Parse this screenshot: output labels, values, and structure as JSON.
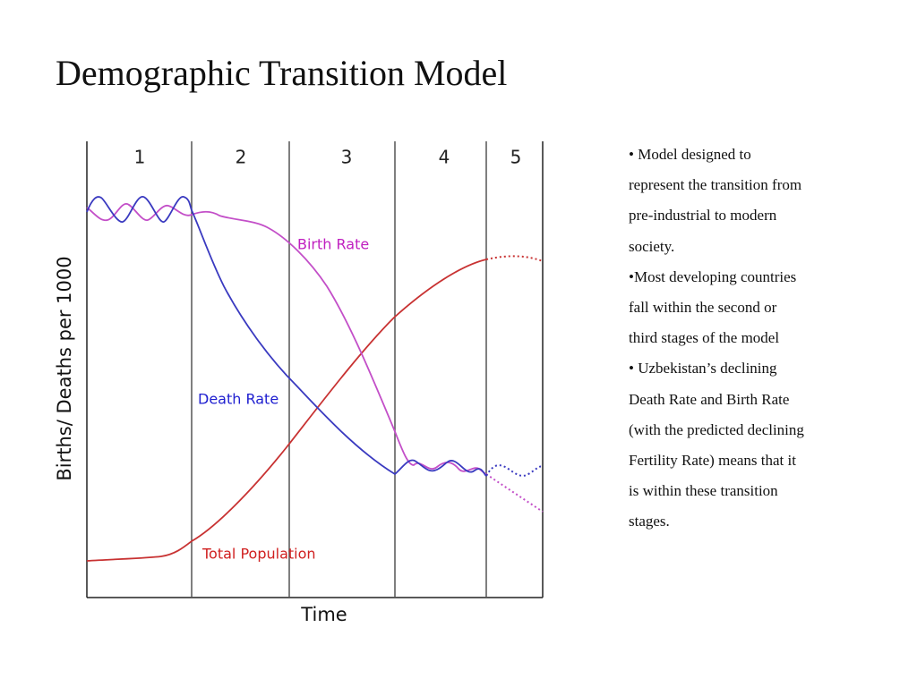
{
  "title": "Demographic Transition Model",
  "diagram": {
    "stages": [
      "1",
      "2",
      "3",
      "4",
      "5"
    ],
    "curves": {
      "birth_rate": "Birth Rate",
      "death_rate": "Death Rate",
      "total_population": "Total Population"
    },
    "y_axis_label": "Births/ Deaths per 1000",
    "x_axis_label": "Time"
  },
  "notes": [
    "• Model designed to represent the transition from pre-industrial to modern society.",
    "•Most developing countries fall within the second or third stages of the model",
    "• Uzbekistan’s declining Death Rate and Birth Rate  (with the predicted declining Fertility Rate) means that it is within these transition stages."
  ]
}
